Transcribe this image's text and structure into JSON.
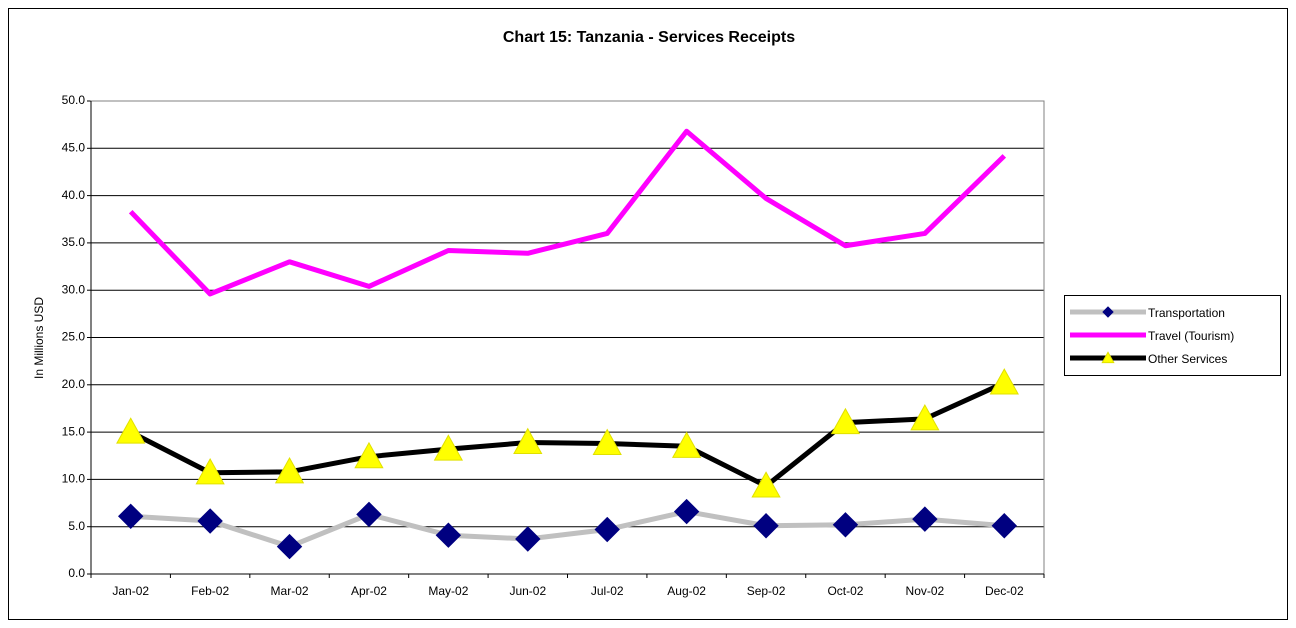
{
  "chart_data": {
    "type": "line",
    "title": "Chart 15: Tanzania - Services Receipts",
    "y_label": "In Millions USD",
    "categories": [
      "Jan-02",
      "Feb-02",
      "Mar-02",
      "Apr-02",
      "May-02",
      "Jun-02",
      "Jul-02",
      "Aug-02",
      "Sep-02",
      "Oct-02",
      "Nov-02",
      "Dec-02"
    ],
    "series": [
      {
        "name": "Transportation",
        "color": "#c0c0c0",
        "marker": "diamond",
        "marker_color": "#000080",
        "values": [
          6.1,
          5.6,
          2.9,
          6.3,
          4.1,
          3.7,
          4.7,
          6.6,
          5.1,
          5.2,
          5.8,
          5.1
        ]
      },
      {
        "name": "Travel (Tourism)",
        "color": "#ff00ff",
        "marker": "none",
        "values": [
          38.3,
          29.6,
          33.0,
          30.4,
          34.2,
          33.9,
          36.0,
          46.8,
          39.7,
          34.7,
          36.0,
          44.2
        ]
      },
      {
        "name": "Other Services",
        "color": "#000000",
        "marker": "triangle",
        "marker_color": "#ffff00",
        "values": [
          15.0,
          10.7,
          10.8,
          12.4,
          13.2,
          13.9,
          13.8,
          13.5,
          9.3,
          16.0,
          16.4,
          20.2
        ]
      }
    ],
    "ylim": [
      0,
      50
    ],
    "yticks": [
      {
        "value": 0,
        "label": "0.0"
      },
      {
        "value": 5,
        "label": "5.0"
      },
      {
        "value": 10,
        "label": "10.0"
      },
      {
        "value": 15,
        "label": "15.0"
      },
      {
        "value": 20,
        "label": "20.0"
      },
      {
        "value": 25,
        "label": "25.0"
      },
      {
        "value": 30,
        "label": "30.0"
      },
      {
        "value": 35,
        "label": "35.0"
      },
      {
        "value": 40,
        "label": "40.0"
      },
      {
        "value": 45,
        "label": "45.0"
      },
      {
        "value": 50,
        "label": "50.0"
      }
    ],
    "grid": true,
    "legend": "right"
  }
}
